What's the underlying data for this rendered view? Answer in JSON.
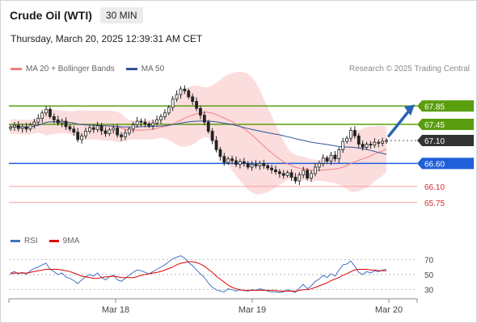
{
  "header": {
    "instrument": "Crude Oil (WTI)",
    "timeframe": "30 MIN"
  },
  "datetime": "Thursday, March 20, 2025 12:39:31 AM CET",
  "legend": [
    {
      "label": "MA 20 + Bollinger Bands",
      "color": "#f08080"
    },
    {
      "label": "MA 50",
      "color": "#2f5597"
    }
  ],
  "source": "Research © 2025 Trading Central",
  "rsi_legend": [
    {
      "label": "RSI",
      "color": "#4472c4"
    },
    {
      "label": "9MA",
      "color": "#e00000"
    }
  ],
  "colors": {
    "resistance": "#5a9e0f",
    "support": "#1f5fd9",
    "target_down": "#f2a0a0",
    "price_tag": "#333333",
    "arrow": "#2a63b5",
    "bollinger_fill": "#fbd7d7",
    "candle": "#222222"
  },
  "chart_data": [
    {
      "type": "candlestick",
      "ylim": [
        65.5,
        68.4
      ],
      "x_ticks": [
        "Mar 18",
        "Mar 19",
        "Mar 20"
      ],
      "levels": [
        {
          "value": 67.85,
          "label": "67.85",
          "kind": "resistance"
        },
        {
          "value": 67.45,
          "label": "67.45",
          "kind": "resistance"
        },
        {
          "value": 67.1,
          "label": "67.10",
          "kind": "last_price"
        },
        {
          "value": 66.6,
          "label": "66.60",
          "kind": "support"
        },
        {
          "value": 66.1,
          "label": "66.10",
          "kind": "target"
        },
        {
          "value": 65.75,
          "label": "65.75",
          "kind": "target"
        }
      ],
      "close": [
        67.39,
        67.43,
        67.36,
        67.4,
        67.35,
        67.44,
        67.5,
        67.58,
        67.7,
        67.78,
        67.62,
        67.55,
        67.48,
        67.52,
        67.4,
        67.35,
        67.28,
        67.12,
        67.2,
        67.3,
        67.38,
        67.34,
        67.42,
        67.31,
        67.25,
        67.33,
        67.37,
        67.22,
        67.18,
        67.26,
        67.35,
        67.44,
        67.52,
        67.5,
        67.46,
        67.42,
        67.48,
        67.55,
        67.62,
        67.7,
        67.82,
        68.0,
        68.1,
        68.22,
        68.18,
        68.05,
        67.95,
        67.8,
        67.65,
        67.5,
        67.3,
        67.1,
        66.9,
        66.75,
        66.62,
        66.7,
        66.66,
        66.58,
        66.64,
        66.6,
        66.52,
        66.58,
        66.55,
        66.6,
        66.55,
        66.5,
        66.46,
        66.42,
        66.38,
        66.34,
        66.4,
        66.3,
        66.22,
        66.35,
        66.45,
        66.28,
        66.38,
        66.52,
        66.6,
        66.72,
        66.65,
        66.78,
        66.7,
        66.9,
        67.08,
        67.15,
        67.32,
        67.2,
        67.02,
        66.95,
        67.02,
        67.0,
        67.06,
        67.04,
        67.08,
        67.1
      ]
    },
    {
      "type": "line",
      "title": "RSI",
      "ylim": [
        20,
        80
      ],
      "y_ticks": [
        70,
        50,
        30
      ],
      "series": [
        {
          "name": "RSI",
          "values": [
            52,
            54,
            51,
            53,
            50,
            55,
            58,
            60,
            63,
            65,
            57,
            54,
            50,
            52,
            47,
            45,
            42,
            38,
            43,
            47,
            50,
            48,
            52,
            46,
            43,
            47,
            49,
            43,
            41,
            45,
            49,
            53,
            56,
            55,
            53,
            51,
            54,
            57,
            60,
            63,
            67,
            71,
            73,
            75,
            72,
            66,
            62,
            56,
            51,
            46,
            39,
            33,
            30,
            28,
            27,
            31,
            30,
            28,
            30,
            29,
            28,
            30,
            29,
            31,
            30,
            28,
            27,
            27,
            26,
            27,
            30,
            28,
            26,
            32,
            37,
            31,
            35,
            41,
            44,
            49,
            46,
            51,
            48,
            56,
            63,
            64,
            68,
            61,
            53,
            50,
            54,
            52,
            55,
            54,
            56,
            57
          ]
        },
        {
          "name": "9MA",
          "values": [
            51,
            52,
            52,
            52,
            52,
            53,
            54,
            55,
            56,
            57,
            57,
            57,
            57,
            56,
            55,
            54,
            52,
            50,
            48,
            47,
            46,
            45,
            45,
            46,
            47,
            47,
            48,
            47,
            46,
            46,
            46,
            46,
            47,
            49,
            50,
            51,
            52,
            53,
            54,
            56,
            58,
            60,
            63,
            65,
            66,
            67,
            67,
            66,
            64,
            61,
            57,
            53,
            48,
            44,
            40,
            36,
            33,
            31,
            30,
            29,
            29,
            29,
            29,
            29,
            29,
            29,
            29,
            29,
            28,
            28,
            28,
            28,
            28,
            29,
            30,
            30,
            31,
            33,
            35,
            37,
            39,
            42,
            44,
            46,
            49,
            51,
            54,
            56,
            57,
            57,
            57,
            56,
            56,
            55,
            55,
            55
          ]
        }
      ]
    }
  ]
}
